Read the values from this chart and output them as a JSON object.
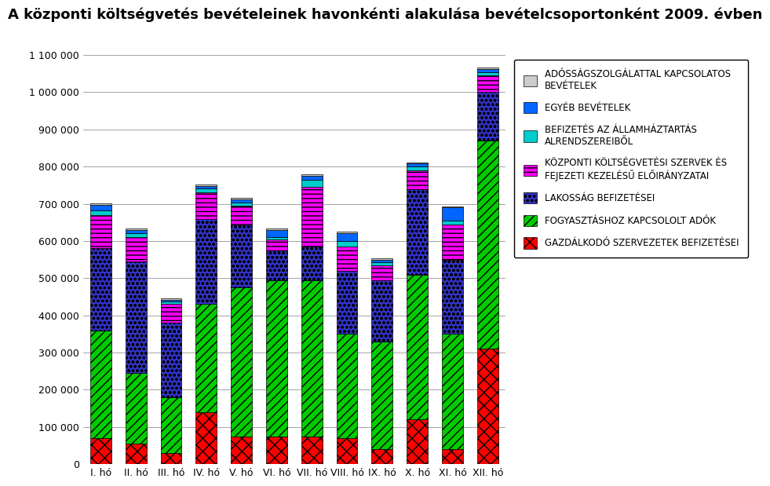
{
  "title": "A központi költségvetés bevételeinek havonkénti alakulása bevételcsoportonként 2009. évben",
  "months": [
    "I. hó",
    "II. hó",
    "III. hó",
    "IV. hó",
    "V. hó",
    "VI. hó",
    "VII. hó",
    "VIII. hó",
    "IX. hó",
    "X. hó",
    "XI. hó",
    "XII. hó"
  ],
  "series": [
    {
      "name": "GAZDÁLKODÓ SZERVEZETEK BEFIZETÉSEI",
      "color": "#FF0000",
      "hatch": "xx",
      "values": [
        70000,
        55000,
        30000,
        140000,
        75000,
        75000,
        75000,
        70000,
        40000,
        120000,
        40000,
        310000
      ]
    },
    {
      "name": "FOGYASZTÁSHOZ KAPCSOLOLT ADÓK",
      "color": "#00CC00",
      "hatch": "///",
      "values": [
        290000,
        190000,
        150000,
        290000,
        400000,
        420000,
        420000,
        280000,
        290000,
        390000,
        310000,
        560000
      ]
    },
    {
      "name": "LAKOSSÁG BEFIZETÉSEI",
      "color": "#3333CC",
      "hatch": "ooo",
      "values": [
        220000,
        300000,
        200000,
        230000,
        170000,
        80000,
        90000,
        170000,
        165000,
        230000,
        200000,
        130000
      ]
    },
    {
      "name": "KÖZPONTI KÖLTSÉGVETÉSI SZERVEK ÉS\nFEJEZETI KEZELÉSŰ ELŐIRÁNYZATAI",
      "color": "#FF00FF",
      "hatch": "---",
      "values": [
        90000,
        65000,
        50000,
        70000,
        50000,
        30000,
        160000,
        65000,
        40000,
        50000,
        95000,
        45000
      ]
    },
    {
      "name": "BEFIZETÉS AZ ÁLLAMHÁZTARTÁS\nALRENDSZEREIBŐL",
      "color": "#00CCCC",
      "hatch": "",
      "values": [
        12000,
        10000,
        7000,
        12000,
        8000,
        5000,
        20000,
        15000,
        8000,
        10000,
        10000,
        8000
      ]
    },
    {
      "name": "EGYÉB BEVÉTELEK",
      "color": "#0066FF",
      "hatch": "",
      "values": [
        15000,
        10000,
        5000,
        6000,
        8000,
        20000,
        10000,
        20000,
        7000,
        8000,
        35000,
        10000
      ]
    },
    {
      "name": "ADÓSSÁGSZOLGÁLATTAL KAPCSOLATOS\nBEVÉTELEK",
      "color": "#CCCCCC",
      "hatch": "",
      "values": [
        5000,
        4000,
        3000,
        4000,
        4000,
        3000,
        4000,
        5000,
        3000,
        4000,
        3000,
        4000
      ]
    }
  ],
  "ylim": [
    0,
    1100000
  ],
  "yticks": [
    0,
    100000,
    200000,
    300000,
    400000,
    500000,
    600000,
    700000,
    800000,
    900000,
    1000000,
    1100000
  ],
  "ytick_labels": [
    "0",
    "100 000",
    "200 000",
    "300 000",
    "400 000",
    "500 000",
    "600 000",
    "700 000",
    "800 000",
    "900 000",
    "1 000 000",
    "1 100 000"
  ],
  "background_color": "#FFFFFF",
  "plot_area_color": "#FFFFFF",
  "bar_width": 0.6,
  "title_fontsize": 13,
  "legend_fontsize": 8.5
}
